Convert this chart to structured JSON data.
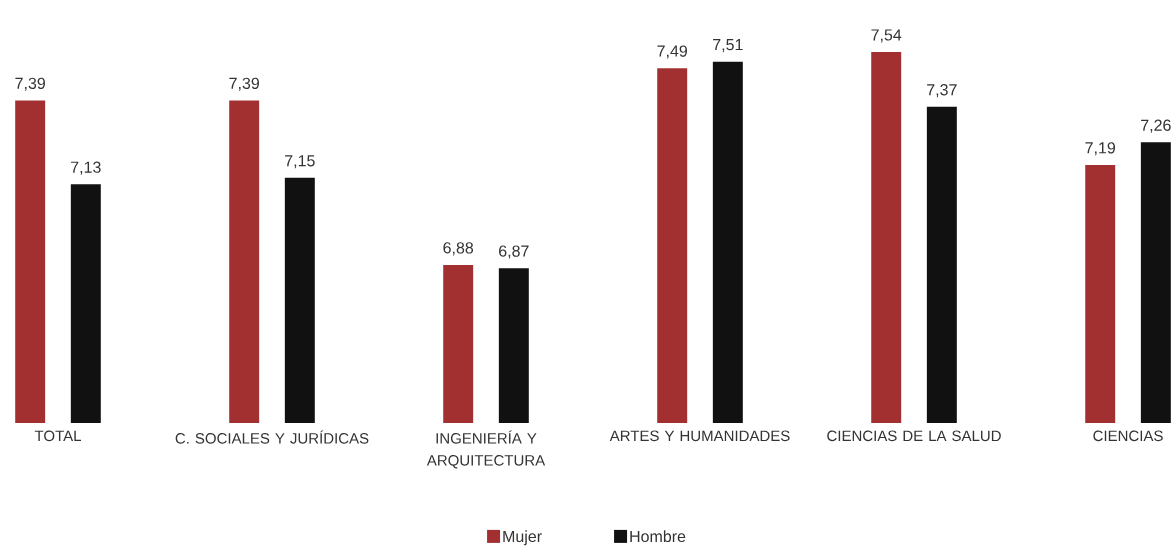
{
  "chart_data": {
    "type": "bar",
    "categories": [
      "TOTAL",
      "C. SOCIALES Y JURÍDICAS",
      "INGENIERÍA Y ARQUITECTURA",
      "ARTES Y HUMANIDADES",
      "CIENCIAS DE LA SALUD",
      "CIENCIAS"
    ],
    "series": [
      {
        "name": "Mujer",
        "color": "#a33030",
        "values": [
          7.39,
          7.39,
          6.88,
          7.49,
          7.54,
          7.19
        ],
        "value_labels": [
          "7,39",
          "7,39",
          "6,88",
          "7,49",
          "7,54",
          "7,19"
        ]
      },
      {
        "name": "Hombre",
        "color": "#111111",
        "values": [
          7.13,
          7.15,
          6.87,
          7.51,
          7.37,
          7.26
        ],
        "value_labels": [
          "7,13",
          "7,15",
          "6,87",
          "7,51",
          "7,37",
          "7,26"
        ]
      }
    ],
    "ylim": [
      6.39,
      7.54
    ],
    "legend": "bottom"
  }
}
